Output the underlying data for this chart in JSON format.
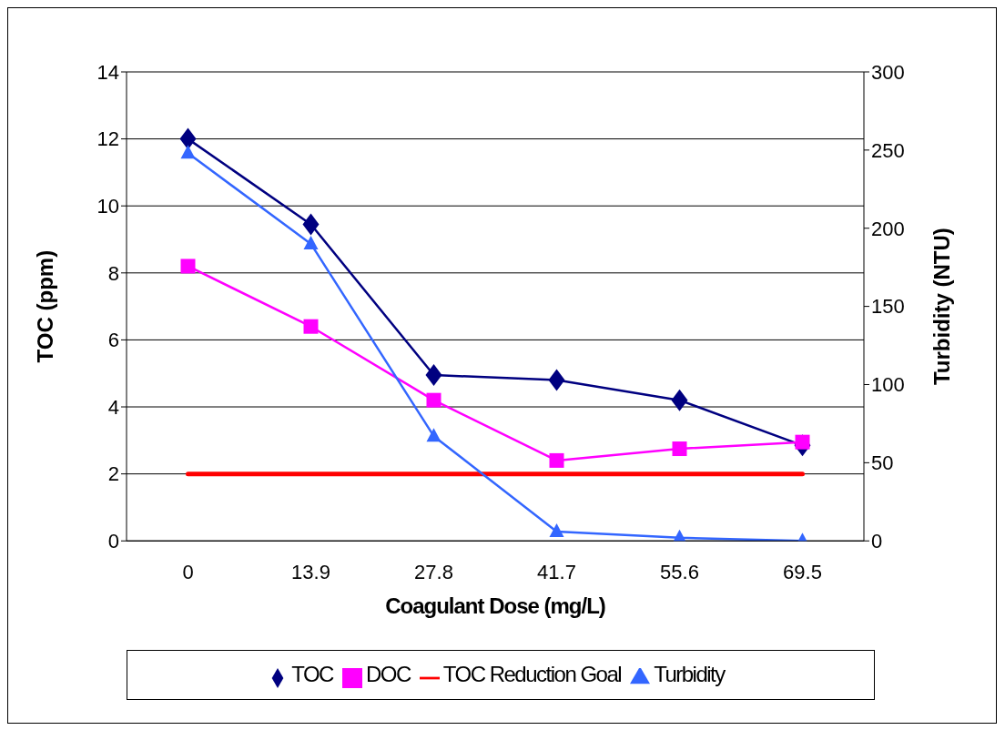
{
  "chart_data": {
    "type": "line",
    "xlabel": "Coagulant Dose (mg/L)",
    "ylabel": "TOC (ppm)",
    "y2label": "Turbidity (NTU)",
    "categories": [
      "0",
      "13.9",
      "27.8",
      "41.7",
      "55.6",
      "69.5"
    ],
    "series": [
      {
        "name": "TOC",
        "color": "#000080",
        "marker": "diamond",
        "values": [
          12.0,
          9.45,
          4.95,
          4.8,
          4.2,
          2.85
        ]
      },
      {
        "name": "DOC",
        "color": "#ff00ff",
        "marker": "square",
        "values": [
          8.2,
          6.4,
          4.2,
          2.4,
          2.75,
          2.95
        ]
      },
      {
        "name": "TOC Reduction Goal",
        "color": "#ff0000",
        "marker": "none",
        "values": [
          2,
          2,
          2,
          2,
          2,
          2
        ]
      },
      {
        "name": "Turbidity",
        "color": "#3366ff",
        "marker": "triangle",
        "axis": "y2",
        "values": [
          248,
          190,
          67,
          6,
          2,
          0
        ]
      }
    ],
    "ylim": [
      0,
      14
    ],
    "yticks": [
      0,
      2,
      4,
      6,
      8,
      10,
      12,
      14
    ],
    "y2lim": [
      0,
      300
    ],
    "y2ticks": [
      0,
      50,
      100,
      150,
      200,
      250,
      300
    ],
    "grid": "y",
    "legend": "bottom"
  }
}
